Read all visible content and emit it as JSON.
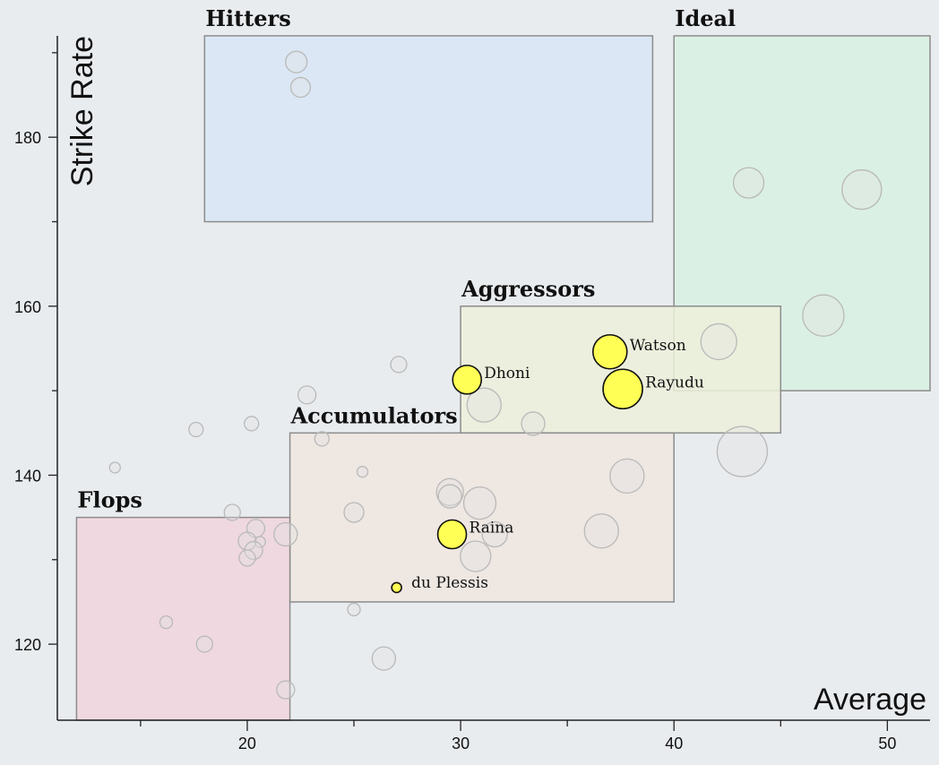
{
  "chart_data": {
    "type": "scatter",
    "xlabel": "Average",
    "ylabel": "Strike Rate",
    "xlim": [
      11.1,
      52
    ],
    "ylim": [
      111,
      192
    ],
    "xticks": [
      20,
      30,
      40,
      50
    ],
    "yticks": [
      120,
      140,
      160,
      180
    ],
    "zones": [
      {
        "label": "Hitters",
        "x": [
          18,
          39
        ],
        "y": [
          170,
          192
        ],
        "color": "#d8e6f5"
      },
      {
        "label": "Ideal",
        "x": [
          40,
          52
        ],
        "y": [
          150,
          192
        ],
        "color": "#d8f1e2"
      },
      {
        "label": "Aggressors",
        "x": [
          30,
          45
        ],
        "y": [
          145,
          160
        ],
        "color": "#edf0da"
      },
      {
        "label": "Accumulators",
        "x": [
          22,
          40
        ],
        "y": [
          125,
          145
        ],
        "color": "#efe6df"
      },
      {
        "label": "Flops",
        "x": [
          12,
          22
        ],
        "y": [
          111,
          135
        ],
        "color": "#f0d5dc"
      }
    ],
    "highlighted": [
      {
        "name": "Watson",
        "x": 37.0,
        "y": 154.6,
        "size": 19
      },
      {
        "name": "Rayudu",
        "x": 37.6,
        "y": 150.2,
        "size": 22
      },
      {
        "name": "Dhoni",
        "x": 30.3,
        "y": 151.3,
        "size": 16
      },
      {
        "name": "Raina",
        "x": 29.6,
        "y": 133.0,
        "size": 16
      },
      {
        "name": "du Plessis",
        "x": 27.0,
        "y": 126.7,
        "size": 5.5
      }
    ],
    "others": [
      {
        "x": 22.3,
        "y": 188.9,
        "size": 12
      },
      {
        "x": 22.5,
        "y": 185.9,
        "size": 11
      },
      {
        "x": 43.5,
        "y": 174.6,
        "size": 17
      },
      {
        "x": 48.8,
        "y": 173.8,
        "size": 22
      },
      {
        "x": 47.0,
        "y": 158.9,
        "size": 23
      },
      {
        "x": 42.1,
        "y": 155.8,
        "size": 20
      },
      {
        "x": 27.1,
        "y": 153.1,
        "size": 9
      },
      {
        "x": 22.8,
        "y": 149.5,
        "size": 10
      },
      {
        "x": 31.1,
        "y": 148.3,
        "size": 19
      },
      {
        "x": 33.4,
        "y": 146.1,
        "size": 13
      },
      {
        "x": 20.2,
        "y": 146.1,
        "size": 8
      },
      {
        "x": 17.6,
        "y": 145.4,
        "size": 8
      },
      {
        "x": 23.5,
        "y": 144.3,
        "size": 8
      },
      {
        "x": 43.2,
        "y": 142.8,
        "size": 28
      },
      {
        "x": 13.8,
        "y": 140.9,
        "size": 6
      },
      {
        "x": 25.4,
        "y": 140.4,
        "size": 6
      },
      {
        "x": 37.8,
        "y": 139.9,
        "size": 19
      },
      {
        "x": 29.5,
        "y": 138.0,
        "size": 15
      },
      {
        "x": 29.5,
        "y": 137.5,
        "size": 13
      },
      {
        "x": 30.9,
        "y": 136.7,
        "size": 18
      },
      {
        "x": 19.3,
        "y": 135.6,
        "size": 9
      },
      {
        "x": 25.0,
        "y": 135.6,
        "size": 11
      },
      {
        "x": 20.4,
        "y": 133.7,
        "size": 10
      },
      {
        "x": 36.6,
        "y": 133.4,
        "size": 19
      },
      {
        "x": 31.6,
        "y": 133.0,
        "size": 14
      },
      {
        "x": 21.8,
        "y": 133.0,
        "size": 13
      },
      {
        "x": 20.0,
        "y": 132.2,
        "size": 10
      },
      {
        "x": 20.6,
        "y": 132.1,
        "size": 6
      },
      {
        "x": 20.3,
        "y": 131.1,
        "size": 10
      },
      {
        "x": 20.0,
        "y": 130.2,
        "size": 9
      },
      {
        "x": 30.7,
        "y": 130.4,
        "size": 17
      },
      {
        "x": 25.0,
        "y": 124.1,
        "size": 7
      },
      {
        "x": 16.2,
        "y": 122.6,
        "size": 7
      },
      {
        "x": 18.0,
        "y": 120.0,
        "size": 9
      },
      {
        "x": 26.4,
        "y": 118.3,
        "size": 13
      },
      {
        "x": 21.8,
        "y": 114.6,
        "size": 10
      }
    ]
  }
}
